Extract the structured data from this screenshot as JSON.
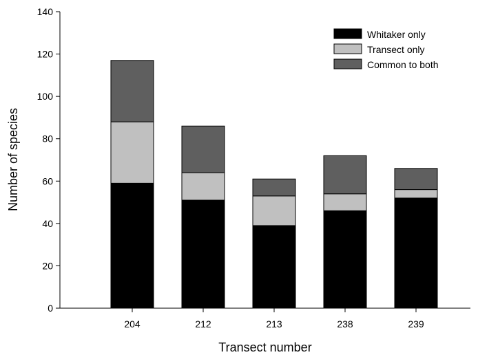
{
  "chart_data": {
    "type": "bar",
    "stacked": true,
    "title": "",
    "xlabel": "Transect number",
    "ylabel": "Number of species",
    "categories": [
      "204",
      "212",
      "213",
      "238",
      "239"
    ],
    "series": [
      {
        "name": "Whitaker only",
        "values": [
          59,
          51,
          39,
          46,
          52
        ],
        "color": "#000000"
      },
      {
        "name": "Transect only",
        "values": [
          29,
          13,
          14,
          8,
          4
        ],
        "color": "#c0c0c0"
      },
      {
        "name": "Common to both",
        "values": [
          29,
          22,
          8,
          18,
          10
        ],
        "color": "#5f5f5f"
      }
    ],
    "ylim": [
      0,
      140
    ],
    "yticks": [
      0,
      20,
      40,
      60,
      80,
      100,
      120,
      140
    ],
    "grid": false,
    "legend_position": "top-right"
  }
}
